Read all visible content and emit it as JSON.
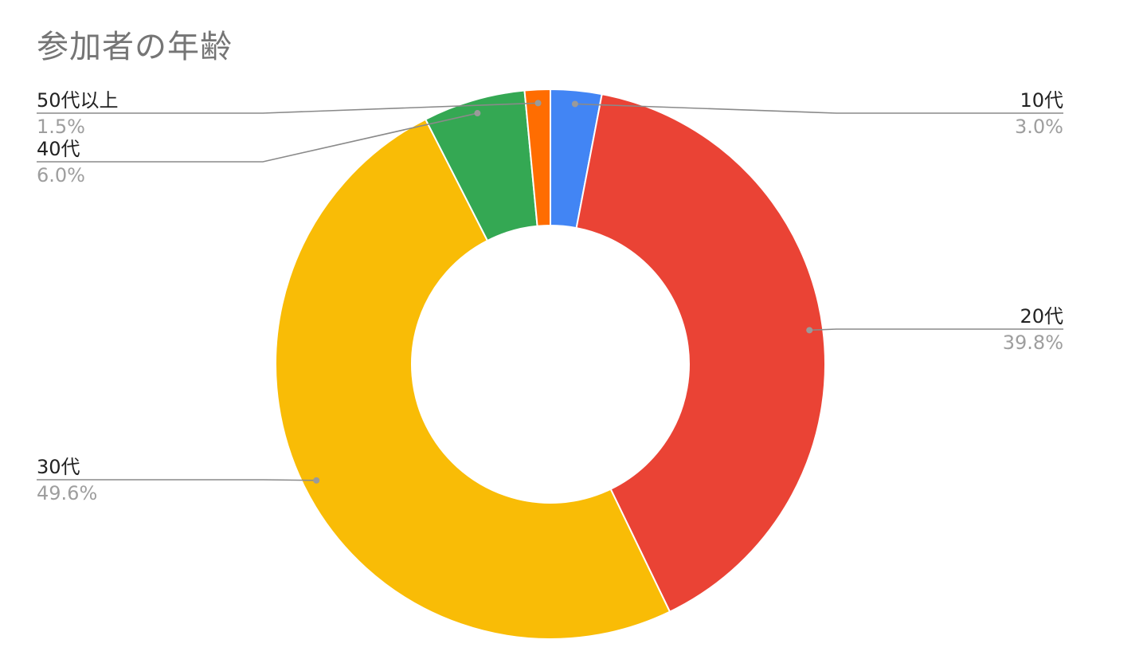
{
  "chart_data": {
    "type": "pie",
    "title": "参加者の年齢",
    "donut": true,
    "legend": "none",
    "slices": [
      {
        "label": "10代",
        "value": 3.0,
        "display": "3.0%",
        "color": "#4285F4"
      },
      {
        "label": "20代",
        "value": 39.8,
        "display": "39.8%",
        "color": "#EA4335"
      },
      {
        "label": "30代",
        "value": 49.6,
        "display": "49.6%",
        "color": "#F9BC06"
      },
      {
        "label": "40代",
        "value": 6.0,
        "display": "6.0%",
        "color": "#34A853"
      },
      {
        "label": "50代以上",
        "value": 1.5,
        "display": "1.5%",
        "color": "#FF6D01"
      }
    ]
  }
}
